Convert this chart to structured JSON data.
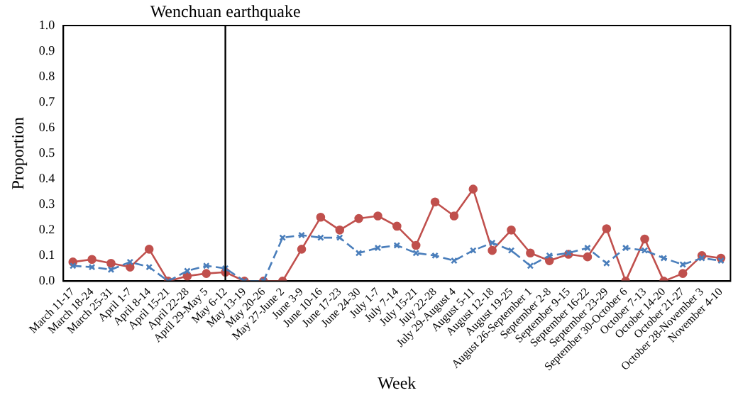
{
  "chart_data": {
    "type": "line",
    "xlabel": "Week",
    "ylabel": "Proportion",
    "categories": [
      "March 11-17",
      "March 18-24",
      "March 25-31",
      "April 1-7",
      "April 8-14",
      "April 15-21",
      "April 22-28",
      "April 29-May 5",
      "May 6-12",
      "May 13-19",
      "May 20-26",
      "May 27-June 2",
      "June 3-9",
      "June 10-16",
      "June 17-23",
      "June 24-30",
      "July 1-7",
      "July 7-14",
      "July 15-21",
      "July 22-28",
      "July 29-August 4",
      "August 5-11",
      "August 12-18",
      "August 19-25",
      "August 26-September 1",
      "September 2-8",
      "September 9-15",
      "September 16-22",
      "September 23-29",
      "September 30-October 6",
      "October 7-13",
      "October 14-20",
      "October 21-27",
      "October 28-November 3",
      "November 4-10"
    ],
    "series": [
      {
        "color": "#4a7ebb",
        "marker": "cross",
        "line_style": "dashed",
        "values": [
          0.06,
          0.055,
          0.045,
          0.075,
          0.055,
          0,
          0.04,
          0.06,
          0.05,
          0,
          0,
          0.17,
          0.18,
          0.17,
          0.17,
          0.11,
          0.13,
          0.14,
          0.11,
          0.1,
          0.08,
          0.12,
          0.15,
          0.12,
          0.06,
          0.1,
          0.11,
          0.13,
          0.07,
          0.13,
          0.12,
          0.09,
          0.065,
          0.09,
          0.08
        ]
      },
      {
        "color": "#c0504d",
        "marker": "circle",
        "line_style": "solid",
        "values": [
          0.075,
          0.085,
          0.07,
          0.055,
          0.125,
          0,
          0.02,
          0.03,
          0.035,
          0,
          0,
          0,
          0.125,
          0.25,
          0.2,
          0.245,
          0.255,
          0.215,
          0.14,
          0.31,
          0.255,
          0.36,
          0.12,
          0.2,
          0.11,
          0.08,
          0.105,
          0.095,
          0.205,
          0,
          0.165,
          0,
          0.03,
          0.1,
          0.09
        ]
      }
    ],
    "ylim": [
      0,
      1
    ],
    "yticks": [
      {
        "value": 0,
        "label": "0.0"
      },
      {
        "value": 0.1,
        "label": "0.1"
      },
      {
        "value": 0.2,
        "label": "0.2"
      },
      {
        "value": 0.3,
        "label": "0.3"
      },
      {
        "value": 0.4,
        "label": "0.4"
      },
      {
        "value": 0.5,
        "label": "0.5"
      },
      {
        "value": 0.6,
        "label": "0.6"
      },
      {
        "value": 0.7,
        "label": "0.7"
      },
      {
        "value": 0.8,
        "label": "0.8"
      },
      {
        "value": 0.9,
        "label": "0.9"
      },
      {
        "value": 1,
        "label": "1.0"
      }
    ],
    "ref_lines": [
      {
        "axis": "x",
        "value": "May 6-12",
        "label": "Wenchuan earthquake",
        "color": "#000000"
      }
    ],
    "grid": false,
    "legend": false
  }
}
